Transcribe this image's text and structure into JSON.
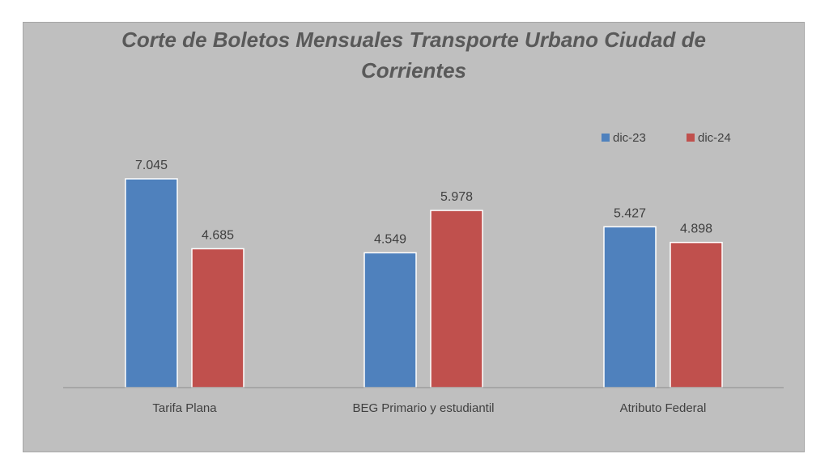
{
  "chart_data": {
    "type": "bar",
    "title": "Corte de Boletos Mensuales Transporte Urbano Ciudad de Corrientes",
    "title_lines": [
      "Corte de Boletos Mensuales Transporte Urbano Ciudad de",
      "Corrientes"
    ],
    "categories": [
      "Tarifa Plana",
      "BEG Primario y estudiantil",
      "Atributo Federal"
    ],
    "series": [
      {
        "name": "dic-23",
        "values": [
          7045,
          4549,
          5427
        ],
        "labels": [
          "7.045",
          "4.549",
          "5.427"
        ],
        "color": "#4f81bd"
      },
      {
        "name": "dic-24",
        "values": [
          4685,
          5978,
          4898
        ],
        "labels": [
          "4.685",
          "5.978",
          "4.898"
        ],
        "color": "#c0504d"
      }
    ],
    "xlabel": "",
    "ylabel": "",
    "ylim": [
      0,
      7400
    ],
    "grid": false,
    "legend_position": "top-right",
    "data_labels": true,
    "background": "#bfbfbf"
  }
}
